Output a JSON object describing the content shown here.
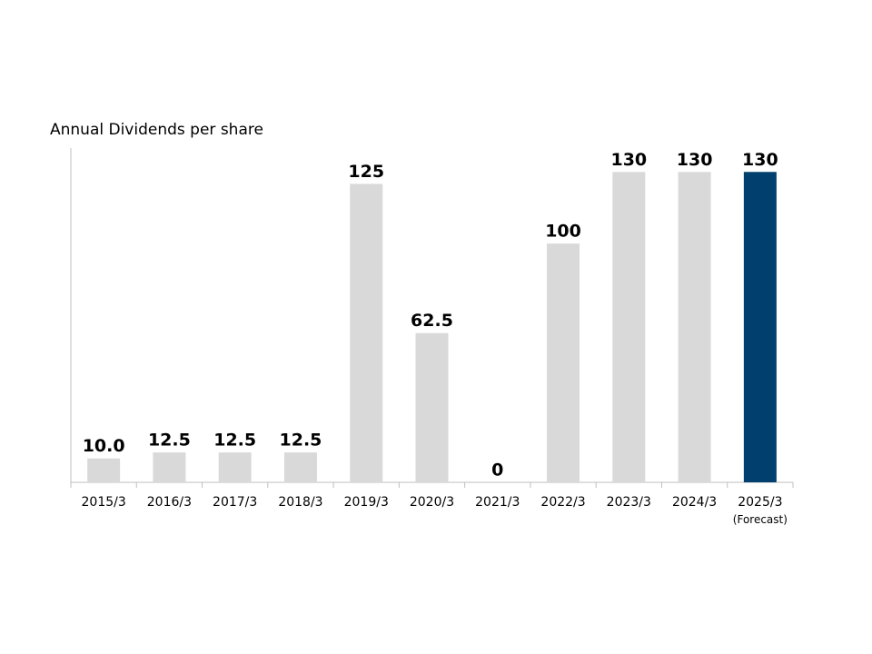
{
  "chart_data": {
    "type": "bar",
    "title": "Annual Dividends per share",
    "categories": [
      "2015/3",
      "2016/3",
      "2017/3",
      "2018/3",
      "2019/3",
      "2020/3",
      "2021/3",
      "2022/3",
      "2023/3",
      "2024/3",
      "2025/3\n(Forecast)"
    ],
    "values": [
      10.0,
      12.5,
      12.5,
      12.5,
      125,
      62.5,
      0,
      100,
      130,
      130,
      130
    ],
    "value_labels": [
      "10.0",
      "12.5",
      "12.5",
      "12.5",
      "125",
      "62.5",
      "0",
      "100",
      "130",
      "130",
      "130"
    ],
    "colors": [
      "#d9d9d9",
      "#d9d9d9",
      "#d9d9d9",
      "#d9d9d9",
      "#d9d9d9",
      "#d9d9d9",
      "#d9d9d9",
      "#d9d9d9",
      "#d9d9d9",
      "#d9d9d9",
      "#003f6e"
    ],
    "ylim": [
      0,
      140
    ]
  }
}
